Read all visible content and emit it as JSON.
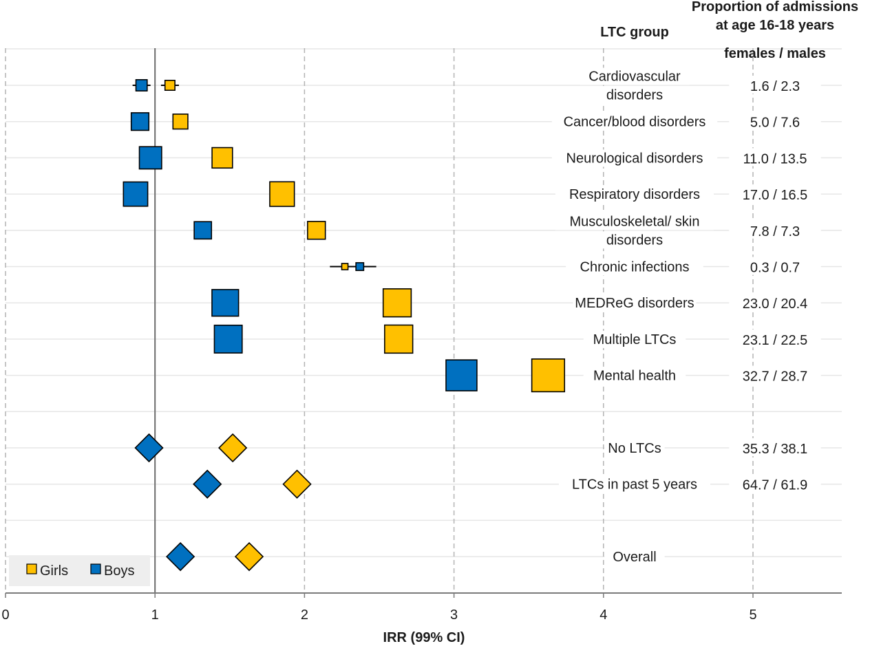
{
  "chart_data": {
    "type": "forest",
    "xlabel": "IRR (99% CI)",
    "xlim": [
      0,
      5.6
    ],
    "x_ticks": [
      "0",
      "1",
      "2",
      "3",
      "4",
      "5"
    ],
    "reference_line": 1,
    "grid": true,
    "legend": {
      "position": "bottom-left",
      "items": [
        {
          "name": "Girls",
          "color": "#FFC000"
        },
        {
          "name": "Boys",
          "color": "#0070C0"
        }
      ]
    },
    "headers": {
      "group": "LTC group",
      "proportion_line1": "Proportion of admissions",
      "proportion_line2": "at age 16-18 years",
      "sex_split": "females / males"
    },
    "rows": [
      {
        "label": [
          "Cardiovascular",
          "disorders"
        ],
        "proportion": "1.6  /  2.3",
        "shape": "square",
        "girls": {
          "irr": 1.1,
          "lo": 1.04,
          "hi": 1.16,
          "weight": 1.6
        },
        "boys": {
          "irr": 0.91,
          "lo": 0.85,
          "hi": 0.97,
          "weight": 2.3
        }
      },
      {
        "label": [
          "Cancer/blood disorders"
        ],
        "proportion": "5.0  /  7.6",
        "shape": "square",
        "girls": {
          "irr": 1.17,
          "lo": 1.15,
          "hi": 1.19,
          "weight": 5.0
        },
        "boys": {
          "irr": 0.9,
          "lo": 0.88,
          "hi": 0.92,
          "weight": 7.6
        }
      },
      {
        "label": [
          "Neurological disorders"
        ],
        "proportion": "11.0 / 13.5",
        "shape": "square",
        "girls": {
          "irr": 1.45,
          "lo": 1.44,
          "hi": 1.46,
          "weight": 11.0
        },
        "boys": {
          "irr": 0.97,
          "lo": 0.96,
          "hi": 0.98,
          "weight": 13.5
        }
      },
      {
        "label": [
          "Respiratory disorders"
        ],
        "proportion": "17.0 / 16.5",
        "shape": "square",
        "girls": {
          "irr": 1.85,
          "lo": 1.84,
          "hi": 1.86,
          "weight": 17.0
        },
        "boys": {
          "irr": 0.87,
          "lo": 0.86,
          "hi": 0.88,
          "weight": 16.5
        }
      },
      {
        "label": [
          "Musculoskeletal/ skin",
          "disorders"
        ],
        "proportion": "7.8  /  7.3",
        "shape": "square",
        "girls": {
          "irr": 2.08,
          "lo": 2.06,
          "hi": 2.1,
          "weight": 7.8
        },
        "boys": {
          "irr": 1.32,
          "lo": 1.3,
          "hi": 1.36,
          "weight": 7.3
        }
      },
      {
        "label": [
          "Chronic infections"
        ],
        "proportion": "0.3  /  0.7",
        "shape": "square",
        "girls": {
          "irr": 2.27,
          "lo": 2.17,
          "hi": 2.37,
          "weight": 0.3
        },
        "boys": {
          "irr": 2.37,
          "lo": 2.26,
          "hi": 2.48,
          "weight": 0.7
        }
      },
      {
        "label": [
          "MEDReG disorders"
        ],
        "proportion": "23.0 / 20.4",
        "shape": "square",
        "girls": {
          "irr": 2.62,
          "lo": 2.61,
          "hi": 2.63,
          "weight": 23.0
        },
        "boys": {
          "irr": 1.47,
          "lo": 1.46,
          "hi": 1.48,
          "weight": 20.4
        }
      },
      {
        "label": [
          "Multiple LTCs"
        ],
        "proportion": "23.1 / 22.5",
        "shape": "square",
        "girls": {
          "irr": 2.63,
          "lo": 2.62,
          "hi": 2.64,
          "weight": 23.1
        },
        "boys": {
          "irr": 1.49,
          "lo": 1.48,
          "hi": 1.5,
          "weight": 22.5
        }
      },
      {
        "label": [
          "Mental health"
        ],
        "proportion": "32.7 / 28.7",
        "shape": "square",
        "girls": {
          "irr": 3.63,
          "lo": 3.62,
          "hi": 3.64,
          "weight": 32.7
        },
        "boys": {
          "irr": 3.05,
          "lo": 3.04,
          "hi": 3.06,
          "weight": 28.7
        }
      },
      {
        "spacer": true
      },
      {
        "label": [
          "No LTCs"
        ],
        "proportion": "35.3 / 38.1",
        "shape": "diamond",
        "girls": {
          "irr": 1.52
        },
        "boys": {
          "irr": 0.96
        }
      },
      {
        "label": [
          "LTCs in past 5 years"
        ],
        "proportion": "64.7 / 61.9",
        "shape": "diamond",
        "girls": {
          "irr": 1.95
        },
        "boys": {
          "irr": 1.35
        }
      },
      {
        "spacer": true
      },
      {
        "label": [
          "Overall"
        ],
        "proportion": "",
        "shape": "diamond",
        "girls": {
          "irr": 1.63
        },
        "boys": {
          "irr": 1.17
        }
      }
    ]
  }
}
